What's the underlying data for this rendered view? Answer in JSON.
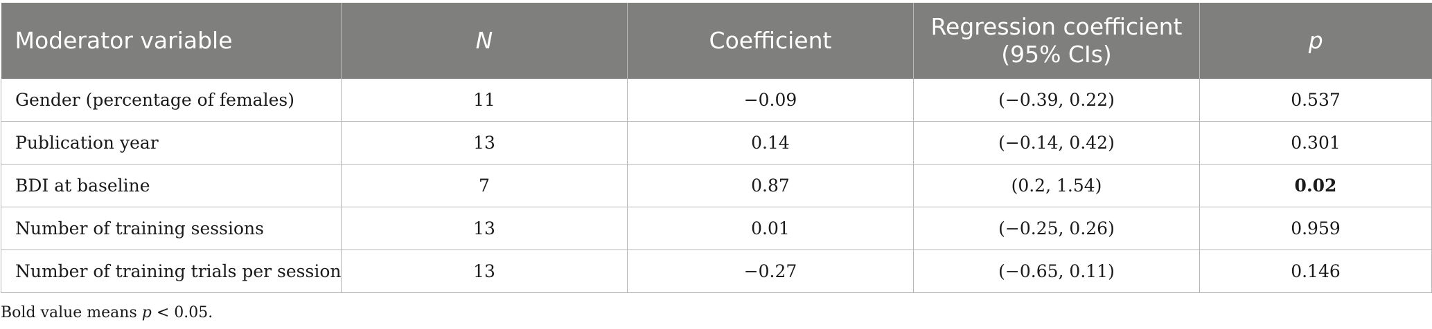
{
  "table": {
    "headers": [
      {
        "label": "Moderator variable",
        "italic": false
      },
      {
        "label": "N",
        "italic": true
      },
      {
        "label": "Coefficient",
        "italic": false
      },
      {
        "label": "Regression coefficient (95% CIs)",
        "italic": false
      },
      {
        "label": "p",
        "italic": true
      }
    ],
    "rows": [
      {
        "variable": "Gender (percentage of females)",
        "n": "11",
        "coefficient": "−0.09",
        "ci": "(−0.39, 0.22)",
        "p": "0.537",
        "p_bold": false
      },
      {
        "variable": "Publication year",
        "n": "13",
        "coefficient": "0.14",
        "ci": "(−0.14, 0.42)",
        "p": "0.301",
        "p_bold": false
      },
      {
        "variable": "BDI at baseline",
        "n": "7",
        "coefficient": "0.87",
        "ci": "(0.2, 1.54)",
        "p": "0.02",
        "p_bold": true
      },
      {
        "variable": "Number of training sessions",
        "n": "13",
        "coefficient": "0.01",
        "ci": "(−0.25, 0.26)",
        "p": "0.959",
        "p_bold": false
      },
      {
        "variable": "Number of training trials per session",
        "n": "13",
        "coefficient": "−0.27",
        "ci": "(−0.65, 0.11)",
        "p": "0.146",
        "p_bold": false
      }
    ]
  },
  "footnote": {
    "before": "Bold value means ",
    "symbol": "p",
    "after": " < 0.05."
  },
  "colors": {
    "header_bg": "#7f7f7e",
    "header_text": "#ffffff",
    "grid": "#b5b5b5"
  }
}
